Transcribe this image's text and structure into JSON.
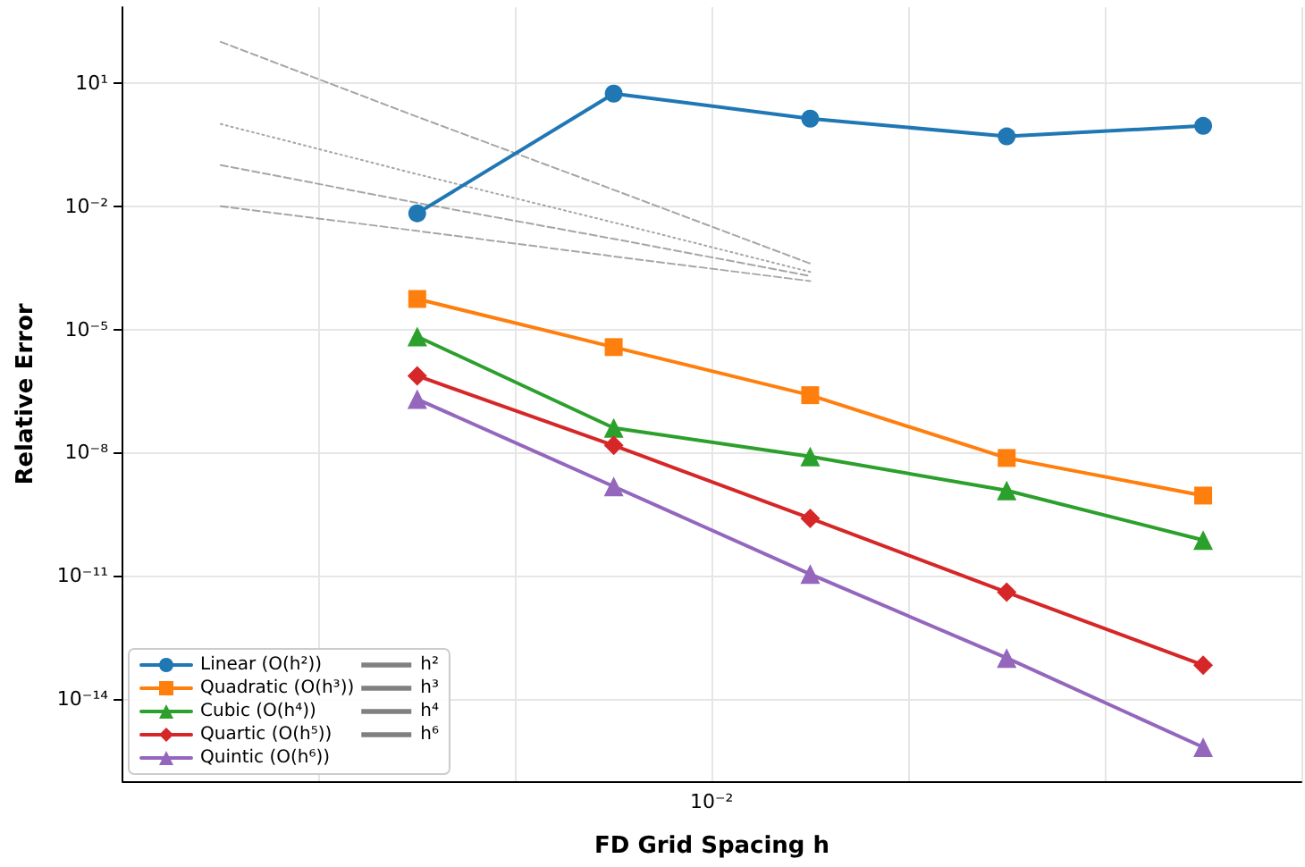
{
  "chart_data": {
    "type": "line",
    "xlabel": "FD Grid Spacing h",
    "ylabel": "Relative Error",
    "log": "y",
    "grid": true,
    "legend": "bottom left",
    "annotations": [
      "10⁻²"
    ],
    "categories": [
      null,
      null,
      null,
      null,
      null,
      null
    ],
    "ylim": [
      1e-16,
      700
    ],
    "yticks": [
      {
        "value": 1e-14,
        "label": "10⁻¹⁴"
      },
      {
        "value": 1e-11,
        "label": "10⁻¹¹"
      },
      {
        "value": 1e-08,
        "label": "10⁻⁸"
      },
      {
        "value": 1e-05,
        "label": "10⁻⁵"
      },
      {
        "value": 0.01,
        "label": "10⁻²"
      },
      {
        "value": 10,
        "label": "10¹"
      }
    ],
    "series": [
      {
        "name": "Linear (O(h²))",
        "color": "#1f77b4",
        "marker": "circle",
        "values": [
          null,
          0.0067,
          5.5,
          1.35,
          0.5,
          0.9
        ]
      },
      {
        "name": "Quadratic (O(h³))",
        "color": "#ff7f0e",
        "marker": "square",
        "values": [
          null,
          5.5e-05,
          3.7e-06,
          2.5e-07,
          7.4e-09,
          9e-10
        ]
      },
      {
        "name": "Cubic (O(h⁴))",
        "color": "#2ca02c",
        "marker": "triangle",
        "values": [
          null,
          6.7e-06,
          4e-08,
          8e-09,
          1.2e-09,
          7.4e-11
        ]
      },
      {
        "name": "Quartic (O(h⁵))",
        "color": "#d62728",
        "marker": "diamond",
        "values": [
          null,
          7.4e-07,
          1.5e-08,
          2.5e-10,
          4e-12,
          6.7e-14
        ]
      },
      {
        "name": "Quintic (O(h⁶))",
        "color": "#9467bd",
        "marker": "triangle",
        "values": [
          null,
          2e-07,
          1.5e-09,
          1.1e-11,
          1e-13,
          6.7e-16
        ]
      },
      {
        "name": "h²",
        "color": "#808080",
        "marker": "none",
        "line_style": "dashed",
        "values": [
          0.01,
          0.0025,
          0.0006,
          0.00015,
          null,
          null
        ]
      },
      {
        "name": "h³",
        "color": "#808080",
        "marker": "none",
        "line_style": "dashed",
        "values": [
          0.1,
          0.012,
          0.0016,
          0.0002,
          null,
          null
        ]
      },
      {
        "name": "h⁴",
        "color": "#808080",
        "marker": "none",
        "line_style": "dotted",
        "values": [
          1,
          0.06,
          0.004,
          0.00025,
          null,
          null
        ]
      },
      {
        "name": "h⁶",
        "color": "#808080",
        "marker": "none",
        "line_style": "dashed",
        "values": [
          100,
          1.5,
          0.025,
          0.0004,
          null,
          null
        ]
      }
    ]
  }
}
